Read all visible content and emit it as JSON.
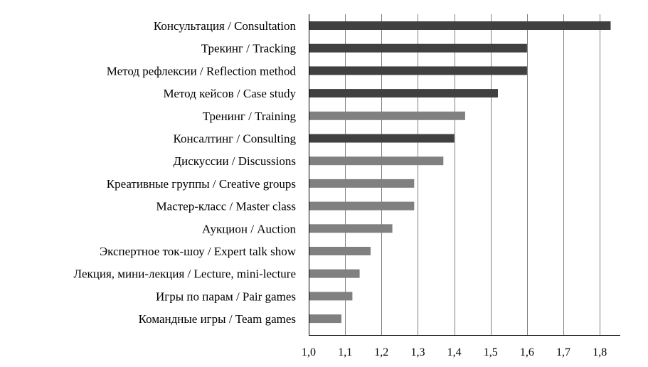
{
  "chart_data": {
    "type": "bar",
    "orientation": "horizontal",
    "categories": [
      "Консультация / Consultation",
      "Трекинг / Tracking",
      "Метод рефлексии / Reflection method",
      "Метод кейсов / Case study",
      "Тренинг / Training",
      "Консалтинг / Consulting",
      "Дискуссии / Discussions",
      "Креативные группы / Creative groups",
      "Мастер-класс / Master class",
      "Аукцион / Auction",
      "Экспертное ток-шоу / Expert talk show",
      "Лекция, мини-лекция / Lecture, mini-lecture",
      "Игры по парам / Pair games",
      "Командные  игры / Team games"
    ],
    "values": [
      1.83,
      1.6,
      1.6,
      1.52,
      1.43,
      1.4,
      1.37,
      1.29,
      1.29,
      1.23,
      1.17,
      1.14,
      1.12,
      1.09
    ],
    "bar_colors": [
      "#404040",
      "#404040",
      "#404040",
      "#404040",
      "#808080",
      "#404040",
      "#808080",
      "#808080",
      "#808080",
      "#808080",
      "#808080",
      "#808080",
      "#808080",
      "#808080"
    ],
    "xlim": [
      1.0,
      1.85
    ],
    "x_ticks": [
      "1,0",
      "1,1",
      "1,2",
      "1,3",
      "1,4",
      "1,5",
      "1,6",
      "1,7",
      "1,8"
    ],
    "x_tick_values": [
      1.0,
      1.1,
      1.2,
      1.3,
      1.4,
      1.5,
      1.6,
      1.7,
      1.8
    ],
    "grid": true,
    "legend": "none",
    "title": "",
    "xlabel": "",
    "ylabel": ""
  }
}
